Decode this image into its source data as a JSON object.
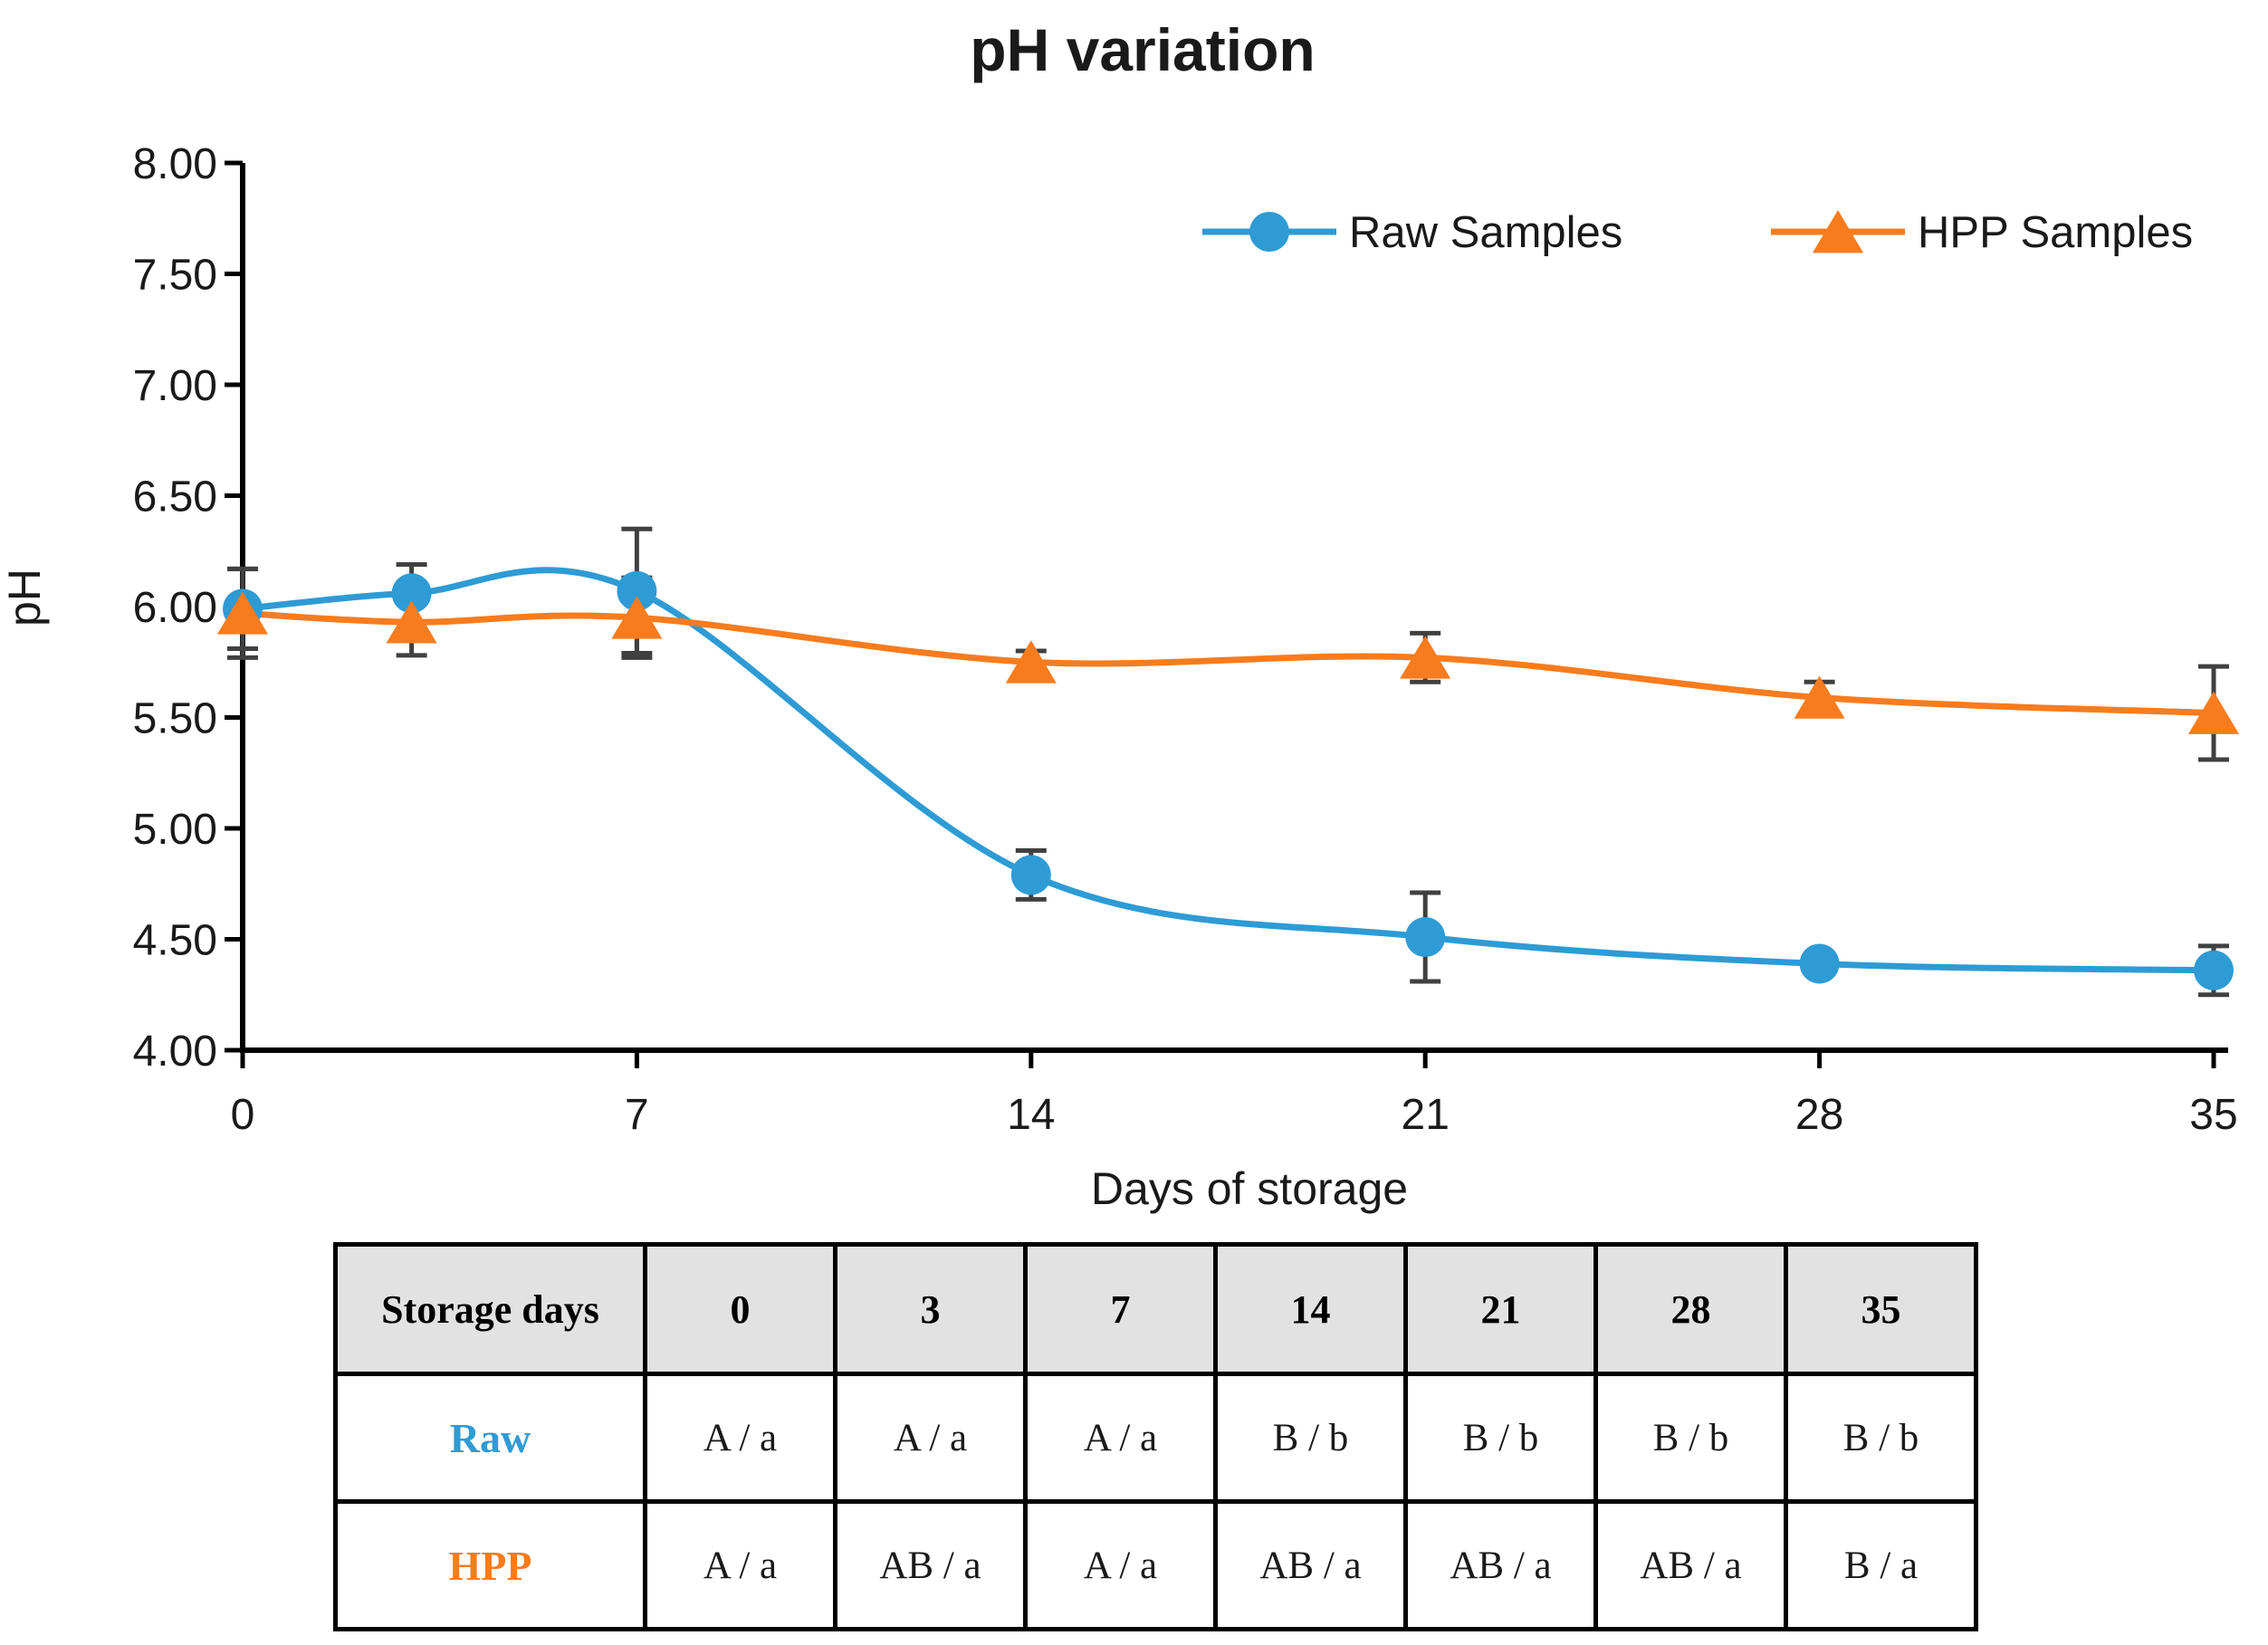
{
  "chart_data": {
    "type": "line",
    "title": "pH variation",
    "xlabel": "Days of storage",
    "ylabel": "pH",
    "x": [
      0,
      3,
      7,
      14,
      21,
      28,
      35
    ],
    "x_tick_labels": [
      0,
      7,
      14,
      21,
      28,
      35
    ],
    "ylim": [
      4.0,
      8.0
    ],
    "y_tick_step": 0.5,
    "grid": false,
    "smooth_lines": true,
    "legend_position": "top-right-horizontal",
    "error_bar_color": "#404040",
    "axis_color": "#000000",
    "series": [
      {
        "name": "Raw Samples",
        "marker": "circle",
        "color": "#2E9BD5",
        "values": [
          5.99,
          6.06,
          6.07,
          4.79,
          4.51,
          4.39,
          4.36
        ],
        "errors": [
          0.18,
          0.13,
          0.28,
          0.11,
          0.2,
          0.04,
          0.11
        ]
      },
      {
        "name": "HPP Samples",
        "marker": "triangle",
        "color": "#F87C1E",
        "values": [
          5.97,
          5.93,
          5.95,
          5.75,
          5.77,
          5.59,
          5.52
        ],
        "errors": [
          0.2,
          0.15,
          0.18,
          0.05,
          0.11,
          0.07,
          0.21
        ]
      }
    ]
  },
  "table": {
    "header_bg": "#E2E2E2",
    "header": [
      "Storage days",
      "0",
      "3",
      "7",
      "14",
      "21",
      "28",
      "35"
    ],
    "rows": [
      {
        "label": "Raw",
        "color": "#2E9BD5",
        "cells": [
          "A / a",
          "A / a",
          "A / a",
          "B / b",
          "B / b",
          "B / b",
          "B / b"
        ]
      },
      {
        "label": "HPP",
        "color": "#F87C1E",
        "cells": [
          "A / a",
          "AB / a",
          "A / a",
          "AB / a",
          "AB / a",
          "AB / a",
          "B / a"
        ]
      }
    ]
  }
}
